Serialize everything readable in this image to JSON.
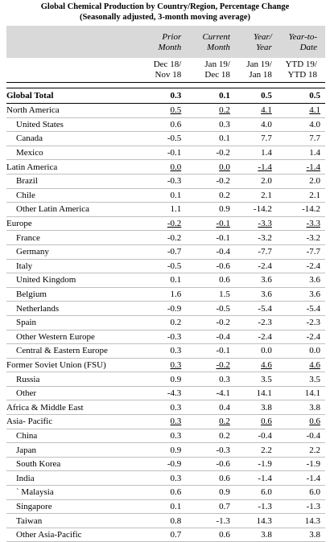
{
  "title_line1": "Global Chemical Production by Country/Region, Percentage Change",
  "title_line2": "(Seasonally adjusted, 3-month moving average)",
  "columns": [
    {
      "head1": "Prior",
      "head2": "Month",
      "period1": "Dec 18/",
      "period2": "Nov 18"
    },
    {
      "head1": "Current",
      "head2": "Month",
      "period1": "Jan 19/",
      "period2": "Dec 18"
    },
    {
      "head1": "Year/",
      "head2": "Year",
      "period1": "Jan 19/",
      "period2": "Jan 18"
    },
    {
      "head1": "Year-to-",
      "head2": "Date",
      "period1": "YTD 19/",
      "period2": "YTD 18"
    }
  ],
  "total": {
    "label": "Global Total",
    "values": [
      "0.3",
      "0.1",
      "0.5",
      "0.5"
    ]
  },
  "rows": [
    {
      "label": "North America",
      "region": true,
      "values": [
        "0.5",
        "0.2",
        "4.1",
        "4.1"
      ]
    },
    {
      "label": "United States",
      "region": false,
      "values": [
        "0.6",
        "0.3",
        "4.0",
        "4.0"
      ]
    },
    {
      "label": "Canada",
      "region": false,
      "values": [
        "-0.5",
        "0.1",
        "7.7",
        "7.7"
      ]
    },
    {
      "label": "Mexico",
      "region": false,
      "values": [
        "-0.1",
        "-0.2",
        "1.4",
        "1.4"
      ]
    },
    {
      "label": "Latin America",
      "region": true,
      "values": [
        "0.0",
        "0.0",
        "-1.4",
        "-1.4"
      ]
    },
    {
      "label": "Brazil",
      "region": false,
      "values": [
        "-0.3",
        "-0.2",
        "2.0",
        "2.0"
      ]
    },
    {
      "label": "Chile",
      "region": false,
      "values": [
        "0.1",
        "0.2",
        "2.1",
        "2.1"
      ]
    },
    {
      "label": "Other Latin America",
      "region": false,
      "values": [
        "1.1",
        "0.9",
        "-14.2",
        "-14.2"
      ]
    },
    {
      "label": "Europe",
      "region": true,
      "values": [
        "-0.2",
        "-0.1",
        "-3.3",
        "-3.3"
      ]
    },
    {
      "label": "France",
      "region": false,
      "values": [
        "-0.2",
        "-0.1",
        "-3.2",
        "-3.2"
      ]
    },
    {
      "label": "Germany",
      "region": false,
      "values": [
        "-0.7",
        "-0.4",
        "-7.7",
        "-7.7"
      ]
    },
    {
      "label": "Italy",
      "region": false,
      "values": [
        "-0.5",
        "-0.6",
        "-2.4",
        "-2.4"
      ]
    },
    {
      "label": "United Kingdom",
      "region": false,
      "values": [
        "0.1",
        "0.6",
        "3.6",
        "3.6"
      ]
    },
    {
      "label": "Belgium",
      "region": false,
      "values": [
        "1.6",
        "1.5",
        "3.6",
        "3.6"
      ]
    },
    {
      "label": "Netherlands",
      "region": false,
      "values": [
        "-0.9",
        "-0.5",
        "-5.4",
        "-5.4"
      ]
    },
    {
      "label": "Spain",
      "region": false,
      "values": [
        "0.2",
        "-0.2",
        "-2.3",
        "-2.3"
      ]
    },
    {
      "label": "Other Western Europe",
      "region": false,
      "values": [
        "-0.3",
        "-0.4",
        "-2.4",
        "-2.4"
      ]
    },
    {
      "label": "Central & Eastern Europe",
      "region": false,
      "values": [
        "0.3",
        "-0.1",
        "0.0",
        "0.0"
      ]
    },
    {
      "label": "Former Soviet Union (FSU)",
      "region": true,
      "values": [
        "0.3",
        "-0.2",
        "4.6",
        "4.6"
      ]
    },
    {
      "label": "Russia",
      "region": false,
      "values": [
        "0.9",
        "0.3",
        "3.5",
        "3.5"
      ]
    },
    {
      "label": "Other",
      "region": false,
      "values": [
        "-4.3",
        "-4.1",
        "14.1",
        "14.1"
      ]
    },
    {
      "label": "Africa & Middle East",
      "region": true,
      "underline": false,
      "values": [
        "0.3",
        "0.4",
        "3.8",
        "3.8"
      ]
    },
    {
      "label": "Asia- Pacific",
      "region": true,
      "values": [
        "0.3",
        "0.2",
        "0.6",
        "0.6"
      ]
    },
    {
      "label": "China",
      "region": false,
      "values": [
        "0.3",
        "0.2",
        "-0.4",
        "-0.4"
      ]
    },
    {
      "label": "Japan",
      "region": false,
      "values": [
        "0.9",
        "-0.3",
        "2.2",
        "2.2"
      ]
    },
    {
      "label": "South Korea",
      "region": false,
      "values": [
        "-0.9",
        "-0.6",
        "-1.9",
        "-1.9"
      ]
    },
    {
      "label": "India",
      "region": false,
      "values": [
        "0.3",
        "0.6",
        "-1.4",
        "-1.4"
      ]
    },
    {
      "label": "` Malaysia",
      "region": false,
      "values": [
        "0.6",
        "0.9",
        "6.0",
        "6.0"
      ]
    },
    {
      "label": "Singapore",
      "region": false,
      "values": [
        "0.1",
        "0.7",
        "-1.3",
        "-1.3"
      ]
    },
    {
      "label": "Taiwan",
      "region": false,
      "values": [
        "0.8",
        "-1.3",
        "14.3",
        "14.3"
      ]
    },
    {
      "label": "Other Asia-Pacific",
      "region": false,
      "values": [
        "0.7",
        "0.6",
        "3.8",
        "3.8"
      ]
    }
  ]
}
